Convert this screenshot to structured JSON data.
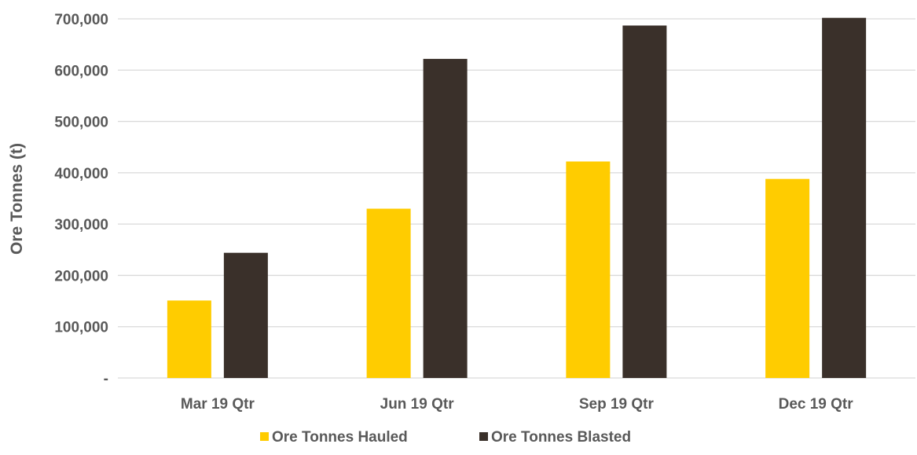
{
  "chart_data": {
    "type": "bar",
    "title": "",
    "xlabel": "",
    "ylabel": "Ore Tonnes (t)",
    "ylim": [
      0,
      700000
    ],
    "yticks": [
      {
        "value": 0,
        "label": "-"
      },
      {
        "value": 100000,
        "label": "100,000"
      },
      {
        "value": 200000,
        "label": "200,000"
      },
      {
        "value": 300000,
        "label": "300,000"
      },
      {
        "value": 400000,
        "label": "400,000"
      },
      {
        "value": 500000,
        "label": "500,000"
      },
      {
        "value": 600000,
        "label": "600,000"
      },
      {
        "value": 700000,
        "label": "700,000"
      }
    ],
    "grid": true,
    "legend_position": "bottom",
    "categories": [
      "Mar 19 Qtr",
      "Jun 19 Qtr",
      "Sep 19 Qtr",
      "Dec 19 Qtr"
    ],
    "series": [
      {
        "name": "Ore Tonnes Hauled",
        "color": "#FFCC00",
        "values": [
          151000,
          330000,
          422000,
          388000
        ]
      },
      {
        "name": "Ore Tonnes Blasted",
        "color": "#3A302A",
        "values": [
          244000,
          622000,
          687000,
          702000
        ]
      }
    ],
    "gridline_color": "#d9d9d9"
  }
}
